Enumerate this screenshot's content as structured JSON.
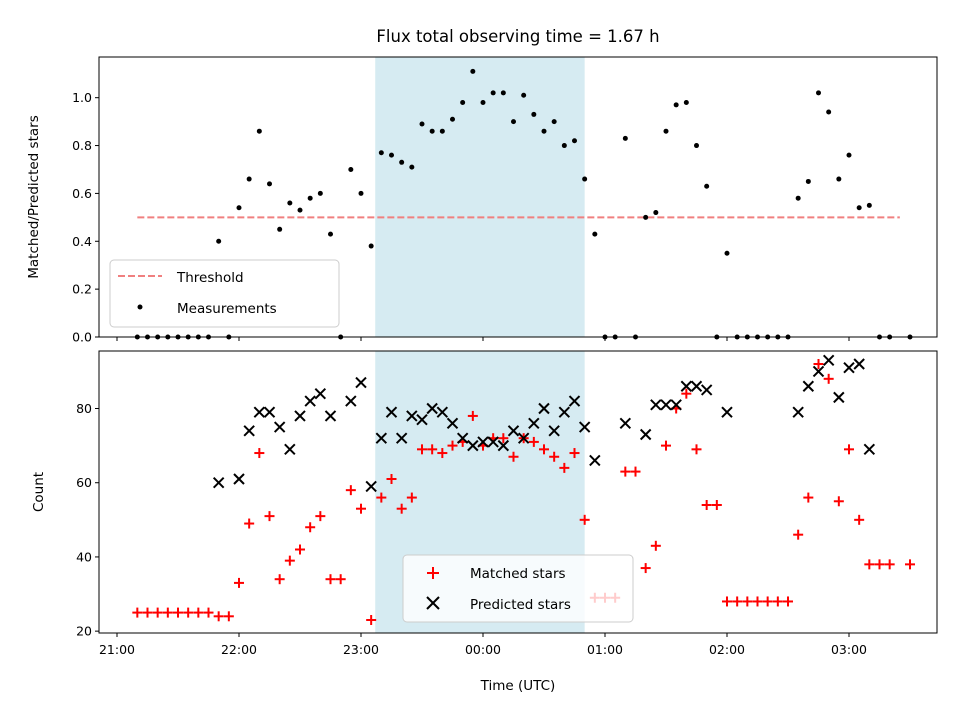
{
  "chart_data": {
    "title": "Flux total observing time = 1.67 h",
    "colors": {
      "threshold": "#f08080",
      "measurements": "#000000",
      "matched": "#ff0000",
      "predicted": "#000000",
      "span": "#add8e6"
    },
    "x_tick_labels": [
      "21:00",
      "22:00",
      "23:00",
      "00:00",
      "01:00",
      "02:00",
      "03:00"
    ],
    "xlabel": "Time (UTC)",
    "highlight_span": {
      "start": "23:07",
      "end": "00:50"
    },
    "panels": [
      {
        "type": "scatter",
        "ylabel": "Matched/Predicted stars",
        "ylim": [
          0,
          1.17
        ],
        "y_ticks": [
          0.0,
          0.2,
          0.4,
          0.6,
          0.8,
          1.0
        ],
        "y_tick_labels": [
          "0.0",
          "0.2",
          "0.4",
          "0.6",
          "0.8",
          "1.0"
        ],
        "legend": {
          "placement": "lower-left",
          "entries": [
            "Threshold",
            "Measurements"
          ]
        },
        "threshold": {
          "name": "Threshold",
          "y": 0.5,
          "x_start": "21:10",
          "x_end": "03:25",
          "style": "dashed"
        },
        "series": [
          {
            "name": "Measurements",
            "marker": "dot",
            "points": [
              [
                "21:10",
                0.0
              ],
              [
                "21:15",
                0.0
              ],
              [
                "21:20",
                0.0
              ],
              [
                "21:25",
                0.0
              ],
              [
                "21:30",
                0.0
              ],
              [
                "21:35",
                0.0
              ],
              [
                "21:40",
                0.0
              ],
              [
                "21:45",
                0.0
              ],
              [
                "21:50",
                0.4
              ],
              [
                "21:55",
                0.0
              ],
              [
                "22:00",
                0.54
              ],
              [
                "22:05",
                0.66
              ],
              [
                "22:10",
                0.86
              ],
              [
                "22:15",
                0.64
              ],
              [
                "22:20",
                0.45
              ],
              [
                "22:25",
                0.56
              ],
              [
                "22:30",
                0.53
              ],
              [
                "22:35",
                0.58
              ],
              [
                "22:40",
                0.6
              ],
              [
                "22:45",
                0.43
              ],
              [
                "22:50",
                0.0
              ],
              [
                "22:55",
                0.7
              ],
              [
                "23:00",
                0.6
              ],
              [
                "23:05",
                0.38
              ],
              [
                "23:10",
                0.77
              ],
              [
                "23:15",
                0.76
              ],
              [
                "23:20",
                0.73
              ],
              [
                "23:25",
                0.71
              ],
              [
                "23:30",
                0.89
              ],
              [
                "23:35",
                0.86
              ],
              [
                "23:40",
                0.86
              ],
              [
                "23:45",
                0.91
              ],
              [
                "23:50",
                0.98
              ],
              [
                "23:55",
                1.11
              ],
              [
                "00:00",
                0.98
              ],
              [
                "00:05",
                1.02
              ],
              [
                "00:10",
                1.02
              ],
              [
                "00:15",
                0.9
              ],
              [
                "00:20",
                1.01
              ],
              [
                "00:25",
                0.93
              ],
              [
                "00:30",
                0.86
              ],
              [
                "00:35",
                0.9
              ],
              [
                "00:40",
                0.8
              ],
              [
                "00:45",
                0.82
              ],
              [
                "00:50",
                0.66
              ],
              [
                "00:55",
                0.43
              ],
              [
                "01:00",
                0.0
              ],
              [
                "01:05",
                0.0
              ],
              [
                "01:10",
                0.83
              ],
              [
                "01:15",
                0.0
              ],
              [
                "01:20",
                0.5
              ],
              [
                "01:25",
                0.52
              ],
              [
                "01:30",
                0.86
              ],
              [
                "01:35",
                0.97
              ],
              [
                "01:40",
                0.98
              ],
              [
                "01:45",
                0.8
              ],
              [
                "01:50",
                0.63
              ],
              [
                "01:55",
                0.0
              ],
              [
                "02:00",
                0.35
              ],
              [
                "02:05",
                0.0
              ],
              [
                "02:10",
                0.0
              ],
              [
                "02:15",
                0.0
              ],
              [
                "02:20",
                0.0
              ],
              [
                "02:25",
                0.0
              ],
              [
                "02:30",
                0.0
              ],
              [
                "02:35",
                0.58
              ],
              [
                "02:40",
                0.65
              ],
              [
                "02:45",
                1.02
              ],
              [
                "02:50",
                0.94
              ],
              [
                "02:55",
                0.66
              ],
              [
                "03:00",
                0.76
              ],
              [
                "03:05",
                0.54
              ],
              [
                "03:10",
                0.55
              ],
              [
                "03:15",
                0.0
              ],
              [
                "03:20",
                0.0
              ],
              [
                "03:30",
                0.0
              ]
            ]
          }
        ]
      },
      {
        "type": "scatter",
        "ylabel": "Count",
        "ylim": [
          19.5,
          95.5
        ],
        "y_ticks": [
          20,
          40,
          60,
          80
        ],
        "y_tick_labels": [
          "20",
          "40",
          "60",
          "80"
        ],
        "legend": {
          "placement": "lower-center",
          "entries": [
            "Matched stars",
            "Predicted stars"
          ]
        },
        "series": [
          {
            "name": "Matched stars",
            "marker": "plus",
            "points": [
              [
                "21:10",
                25
              ],
              [
                "21:15",
                25
              ],
              [
                "21:20",
                25
              ],
              [
                "21:25",
                25
              ],
              [
                "21:30",
                25
              ],
              [
                "21:35",
                25
              ],
              [
                "21:40",
                25
              ],
              [
                "21:45",
                25
              ],
              [
                "21:50",
                24
              ],
              [
                "21:55",
                24
              ],
              [
                "22:00",
                33
              ],
              [
                "22:05",
                49
              ],
              [
                "22:10",
                68
              ],
              [
                "22:15",
                51
              ],
              [
                "22:20",
                34
              ],
              [
                "22:25",
                39
              ],
              [
                "22:30",
                42
              ],
              [
                "22:35",
                48
              ],
              [
                "22:40",
                51
              ],
              [
                "22:45",
                34
              ],
              [
                "22:50",
                34
              ],
              [
                "22:55",
                58
              ],
              [
                "23:00",
                53
              ],
              [
                "23:05",
                23
              ],
              [
                "23:10",
                56
              ],
              [
                "23:15",
                61
              ],
              [
                "23:20",
                53
              ],
              [
                "23:25",
                56
              ],
              [
                "23:30",
                69
              ],
              [
                "23:35",
                69
              ],
              [
                "23:40",
                68
              ],
              [
                "23:45",
                70
              ],
              [
                "23:50",
                71
              ],
              [
                "23:55",
                78
              ],
              [
                "00:00",
                70
              ],
              [
                "00:05",
                72
              ],
              [
                "00:10",
                72
              ],
              [
                "00:15",
                67
              ],
              [
                "00:20",
                72
              ],
              [
                "00:25",
                71
              ],
              [
                "00:30",
                69
              ],
              [
                "00:35",
                67
              ],
              [
                "00:40",
                64
              ],
              [
                "00:45",
                68
              ],
              [
                "00:50",
                50
              ],
              [
                "00:55",
                29
              ],
              [
                "01:00",
                29
              ],
              [
                "01:05",
                29
              ],
              [
                "01:10",
                63
              ],
              [
                "01:15",
                63
              ],
              [
                "01:20",
                37
              ],
              [
                "01:25",
                43
              ],
              [
                "01:30",
                70
              ],
              [
                "01:35",
                80
              ],
              [
                "01:40",
                84
              ],
              [
                "01:45",
                69
              ],
              [
                "01:50",
                54
              ],
              [
                "01:55",
                54
              ],
              [
                "02:00",
                28
              ],
              [
                "02:05",
                28
              ],
              [
                "02:10",
                28
              ],
              [
                "02:15",
                28
              ],
              [
                "02:20",
                28
              ],
              [
                "02:25",
                28
              ],
              [
                "02:30",
                28
              ],
              [
                "02:35",
                46
              ],
              [
                "02:40",
                56
              ],
              [
                "02:45",
                92
              ],
              [
                "02:50",
                88
              ],
              [
                "02:55",
                55
              ],
              [
                "03:00",
                69
              ],
              [
                "03:05",
                50
              ],
              [
                "03:10",
                38
              ],
              [
                "03:15",
                38
              ],
              [
                "03:20",
                38
              ],
              [
                "03:30",
                38
              ]
            ]
          },
          {
            "name": "Predicted stars",
            "marker": "x",
            "points": [
              [
                "21:50",
                60
              ],
              [
                "22:00",
                61
              ],
              [
                "22:05",
                74
              ],
              [
                "22:10",
                79
              ],
              [
                "22:15",
                79
              ],
              [
                "22:20",
                75
              ],
              [
                "22:25",
                69
              ],
              [
                "22:30",
                78
              ],
              [
                "22:35",
                82
              ],
              [
                "22:40",
                84
              ],
              [
                "22:45",
                78
              ],
              [
                "22:55",
                82
              ],
              [
                "23:00",
                87
              ],
              [
                "23:05",
                59
              ],
              [
                "23:10",
                72
              ],
              [
                "23:15",
                79
              ],
              [
                "23:20",
                72
              ],
              [
                "23:25",
                78
              ],
              [
                "23:30",
                77
              ],
              [
                "23:35",
                80
              ],
              [
                "23:40",
                79
              ],
              [
                "23:45",
                76
              ],
              [
                "23:50",
                72
              ],
              [
                "23:55",
                70
              ],
              [
                "00:00",
                71
              ],
              [
                "00:05",
                71
              ],
              [
                "00:10",
                70
              ],
              [
                "00:15",
                74
              ],
              [
                "00:20",
                72
              ],
              [
                "00:25",
                76
              ],
              [
                "00:30",
                80
              ],
              [
                "00:35",
                74
              ],
              [
                "00:40",
                79
              ],
              [
                "00:45",
                82
              ],
              [
                "00:50",
                75
              ],
              [
                "00:55",
                66
              ],
              [
                "01:10",
                76
              ],
              [
                "01:20",
                73
              ],
              [
                "01:25",
                81
              ],
              [
                "01:30",
                81
              ],
              [
                "01:35",
                81
              ],
              [
                "01:40",
                86
              ],
              [
                "01:45",
                86
              ],
              [
                "01:50",
                85
              ],
              [
                "02:00",
                79
              ],
              [
                "02:35",
                79
              ],
              [
                "02:40",
                86
              ],
              [
                "02:45",
                90
              ],
              [
                "02:50",
                93
              ],
              [
                "02:55",
                83
              ],
              [
                "03:00",
                91
              ],
              [
                "03:05",
                92
              ],
              [
                "03:10",
                69
              ]
            ]
          }
        ]
      }
    ]
  }
}
